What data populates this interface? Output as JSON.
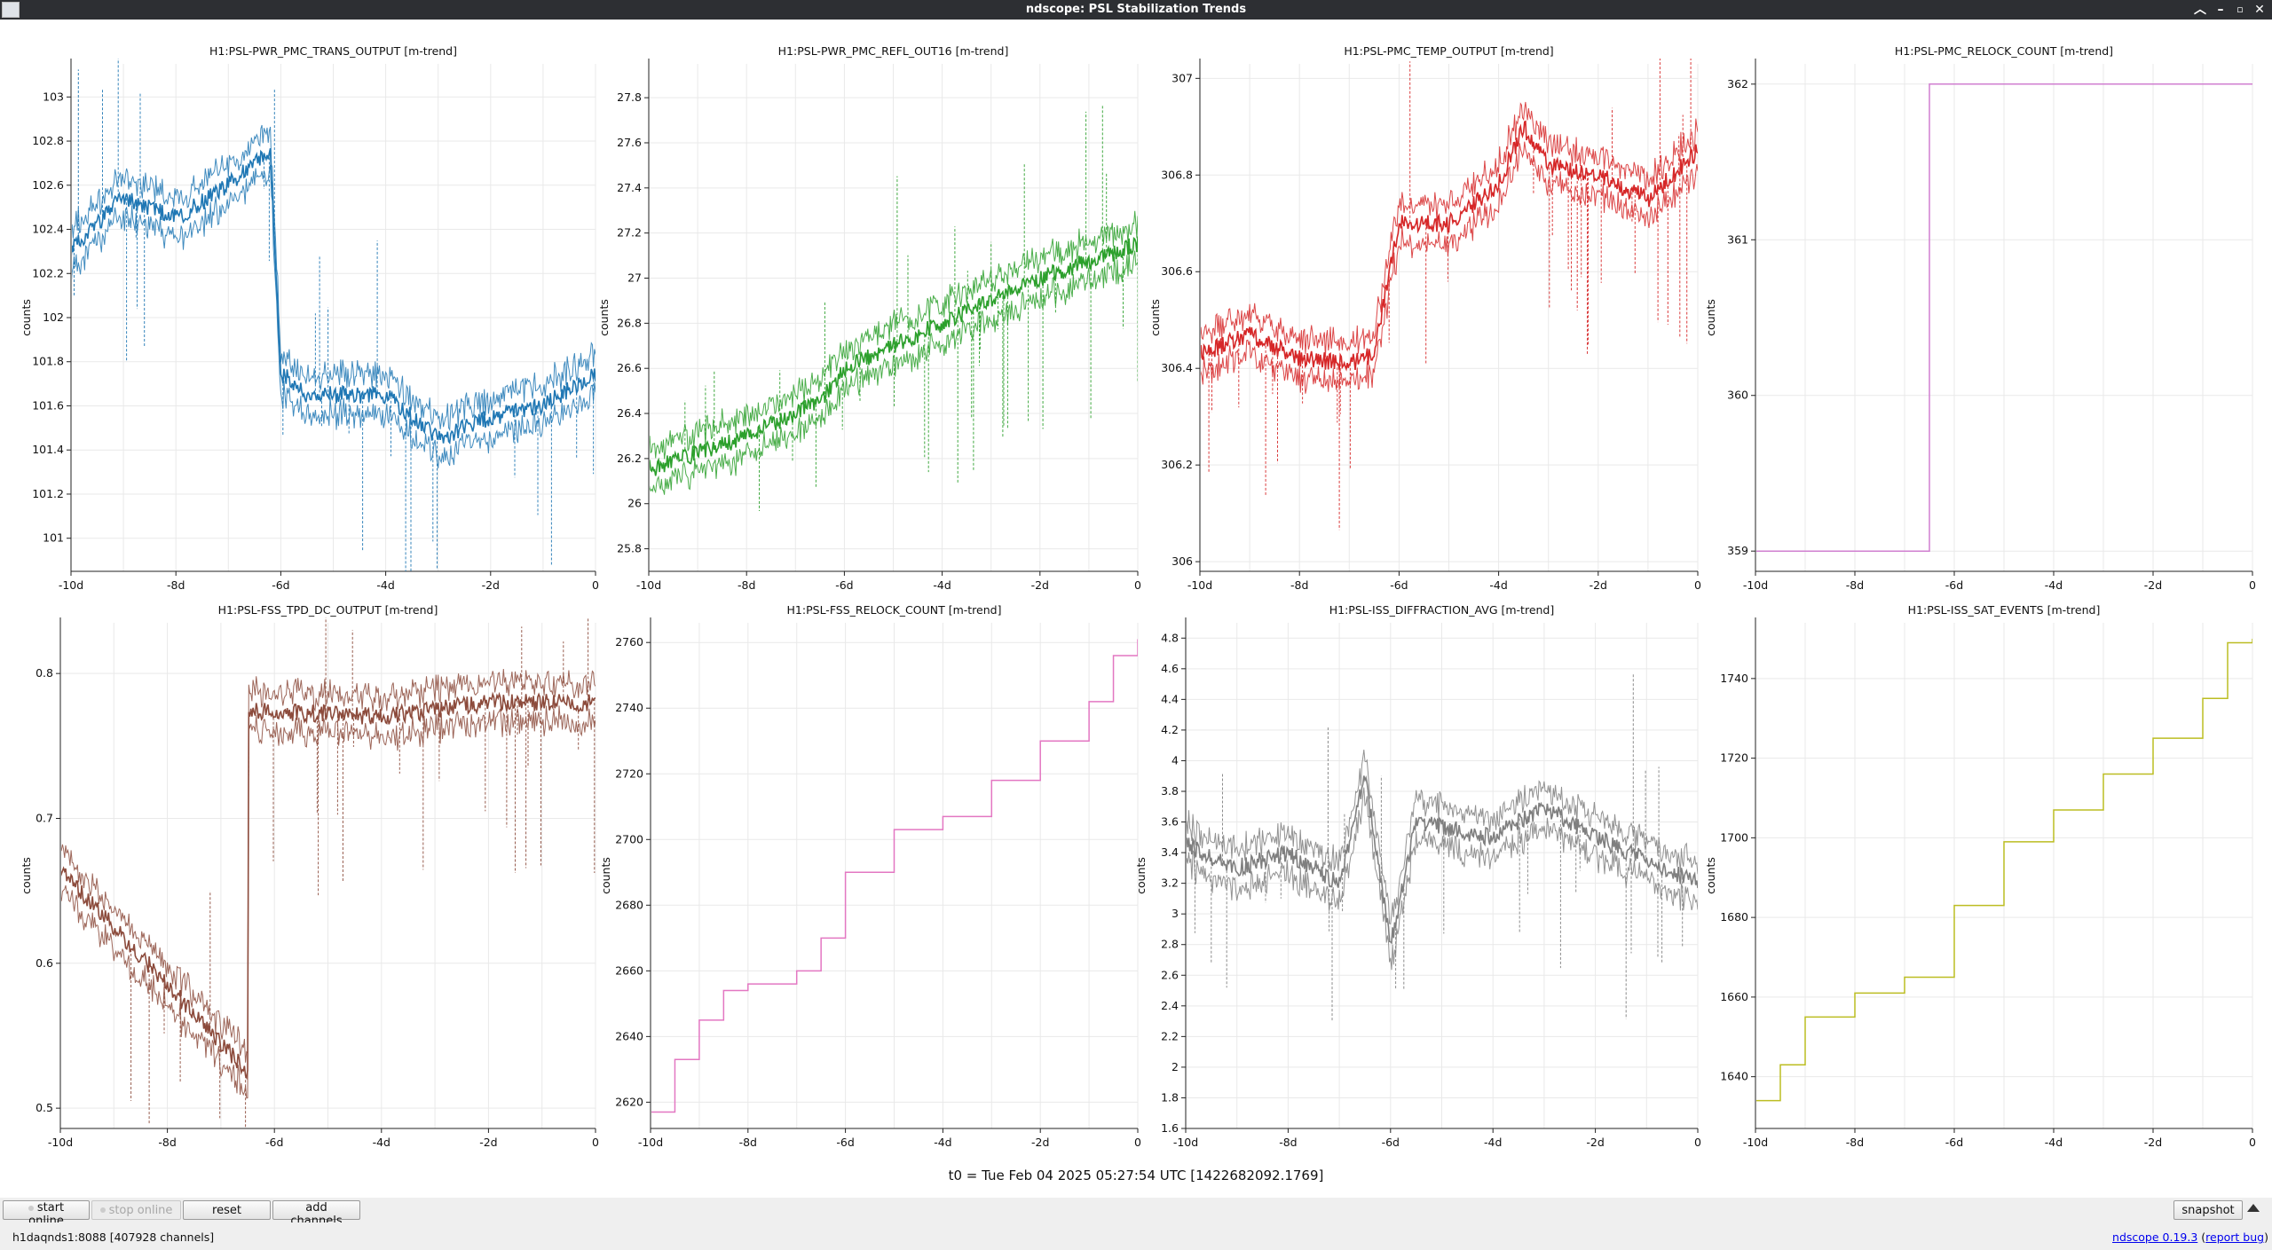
{
  "window": {
    "title": "ndscope: PSL Stabilization Trends"
  },
  "t0_label": "t0 = Tue Feb 04 2025 05:27:54 UTC [1422682092.1769]",
  "ylabel": "counts",
  "xticks": [
    "-10d",
    "-8d",
    "-6d",
    "-4d",
    "-2d",
    "0"
  ],
  "plots": [
    {
      "title": "H1:PSL-PWR_PMC_TRANS_OUTPUT [m-trend]",
      "color": "#1f77b4",
      "ylim": [
        100.85,
        103.15
      ],
      "yticks": [
        "101",
        "101.2",
        "101.4",
        "101.6",
        "101.8",
        "102",
        "102.2",
        "102.4",
        "102.6",
        "102.8",
        "103"
      ],
      "kind": "noise"
    },
    {
      "title": "H1:PSL-PWR_PMC_REFL_OUT16 [m-trend]",
      "color": "#2ca02c",
      "ylim": [
        25.7,
        27.95
      ],
      "yticks": [
        "25.8",
        "26",
        "26.2",
        "26.4",
        "26.6",
        "26.8",
        "27",
        "27.2",
        "27.4",
        "27.6",
        "27.8"
      ],
      "kind": "noise"
    },
    {
      "title": "H1:PSL-PMC_TEMP_OUTPUT [m-trend]",
      "color": "#d62728",
      "ylim": [
        305.98,
        307.03
      ],
      "yticks": [
        "306",
        "306.2",
        "306.4",
        "306.6",
        "306.8",
        "307"
      ],
      "kind": "noise"
    },
    {
      "title": "H1:PSL-PMC_RELOCK_COUNT [m-trend]",
      "color": "#d07fd0",
      "ylim": [
        358.87,
        362.13
      ],
      "yticks": [
        "359",
        "360",
        "361",
        "362"
      ],
      "kind": "step"
    },
    {
      "title": "H1:PSL-FSS_TPD_DC_OUTPUT [m-trend]",
      "color": "#8c4b3c",
      "ylim": [
        0.486,
        0.835
      ],
      "yticks": [
        "0.5",
        "0.6",
        "0.7",
        "0.8"
      ],
      "kind": "noise"
    },
    {
      "title": "H1:PSL-FSS_RELOCK_COUNT [m-trend]",
      "color": "#e377c2",
      "ylim": [
        2612,
        2766
      ],
      "yticks": [
        "2620",
        "2640",
        "2660",
        "2680",
        "2700",
        "2720",
        "2740",
        "2760"
      ],
      "kind": "step"
    },
    {
      "title": "H1:PSL-ISS_DIFFRACTION_AVG [m-trend]",
      "color": "#7f7f7f",
      "ylim": [
        1.6,
        4.9
      ],
      "yticks": [
        "1.6",
        "1.8",
        "2",
        "2.2",
        "2.4",
        "2.6",
        "2.8",
        "3",
        "3.2",
        "3.4",
        "3.6",
        "3.8",
        "4",
        "4.2",
        "4.4",
        "4.6",
        "4.8"
      ],
      "kind": "noise"
    },
    {
      "title": "H1:PSL-ISS_SAT_EVENTS [m-trend]",
      "color": "#bcbd22",
      "ylim": [
        1627,
        1754
      ],
      "yticks": [
        "1640",
        "1660",
        "1680",
        "1700",
        "1720",
        "1740"
      ],
      "kind": "step"
    }
  ],
  "chart_data": [
    {
      "type": "line",
      "title": "H1:PSL-PWR_PMC_TRANS_OUTPUT [m-trend]",
      "ylabel": "counts",
      "xlim": [
        -10,
        0
      ],
      "ylim": [
        100.85,
        103.15
      ],
      "x": [
        -10,
        -9,
        -8,
        -7,
        -6.5,
        -6.2,
        -6,
        -5.5,
        -4,
        -3,
        -2,
        -1,
        0
      ],
      "y": [
        102.3,
        102.55,
        102.45,
        102.6,
        102.7,
        102.75,
        101.75,
        101.65,
        101.65,
        101.45,
        101.55,
        101.6,
        101.75
      ]
    },
    {
      "type": "line",
      "title": "H1:PSL-PWR_PMC_REFL_OUT16 [m-trend]",
      "ylabel": "counts",
      "xlim": [
        -10,
        0
      ],
      "ylim": [
        25.7,
        27.95
      ],
      "x": [
        -10,
        -8,
        -6.5,
        -6,
        -4,
        -2,
        0
      ],
      "y": [
        26.15,
        26.3,
        26.45,
        26.6,
        26.8,
        27.0,
        27.15
      ]
    },
    {
      "type": "line",
      "title": "H1:PSL-PMC_TEMP_OUTPUT [m-trend]",
      "ylabel": "counts",
      "xlim": [
        -10,
        0
      ],
      "ylim": [
        305.98,
        307.03
      ],
      "x": [
        -10,
        -9,
        -8,
        -7,
        -6.5,
        -6,
        -5,
        -4,
        -3.5,
        -3,
        -2,
        -1,
        0
      ],
      "y": [
        306.43,
        306.47,
        306.42,
        306.41,
        306.43,
        306.7,
        306.7,
        306.78,
        306.9,
        306.82,
        306.8,
        306.75,
        306.85
      ]
    },
    {
      "type": "line",
      "title": "H1:PSL-PMC_RELOCK_COUNT [m-trend]",
      "ylabel": "counts",
      "xlim": [
        -10,
        0
      ],
      "ylim": [
        358.87,
        362.13
      ],
      "x": [
        -10,
        -6.5,
        -6.5,
        0
      ],
      "y": [
        359,
        359,
        362,
        362
      ]
    },
    {
      "type": "line",
      "title": "H1:PSL-FSS_TPD_DC_OUTPUT [m-trend]",
      "ylabel": "counts",
      "xlim": [
        -10,
        0
      ],
      "ylim": [
        0.486,
        0.835
      ],
      "x": [
        -10,
        -6.5,
        -6.5,
        -4,
        -2,
        0
      ],
      "y": [
        0.665,
        0.525,
        0.775,
        0.77,
        0.78,
        0.78
      ]
    },
    {
      "type": "line",
      "title": "H1:PSL-FSS_RELOCK_COUNT [m-trend]",
      "ylabel": "counts",
      "xlim": [
        -10,
        0
      ],
      "ylim": [
        2612,
        2766
      ],
      "x": [
        -10,
        -9.5,
        -9,
        -8.5,
        -8,
        -7,
        -6.5,
        -6,
        -5,
        -4,
        -3,
        -2,
        -1,
        -0.5,
        0
      ],
      "y": [
        2617,
        2633,
        2645,
        2654,
        2656,
        2660,
        2670,
        2690,
        2703,
        2707,
        2718,
        2730,
        2742,
        2756,
        2761
      ]
    },
    {
      "type": "line",
      "title": "H1:PSL-ISS_DIFFRACTION_AVG [m-trend]",
      "ylabel": "counts",
      "xlim": [
        -10,
        0
      ],
      "ylim": [
        1.6,
        4.9
      ],
      "x": [
        -10,
        -9,
        -8,
        -7,
        -6.5,
        -6,
        -5.5,
        -4,
        -3,
        -2,
        -1,
        0
      ],
      "y": [
        3.45,
        3.3,
        3.4,
        3.2,
        3.9,
        2.8,
        3.6,
        3.5,
        3.7,
        3.5,
        3.35,
        3.2
      ]
    },
    {
      "type": "line",
      "title": "H1:PSL-ISS_SAT_EVENTS [m-trend]",
      "ylabel": "counts",
      "xlim": [
        -10,
        0
      ],
      "ylim": [
        1627,
        1754
      ],
      "x": [
        -10,
        -9.5,
        -9,
        -8,
        -7,
        -6,
        -5,
        -4,
        -3,
        -2,
        -1,
        -0.5,
        0
      ],
      "y": [
        1634,
        1643,
        1655,
        1661,
        1665,
        1683,
        1699,
        1707,
        1716,
        1725,
        1735,
        1749,
        1750
      ]
    }
  ],
  "toolbar": {
    "start_online": "start online",
    "stop_online": "stop online",
    "reset": "reset",
    "add_channels": "add channels",
    "snapshot": "snapshot"
  },
  "status": {
    "server": "h1daqnds1:8088  [407928 channels]",
    "version_name": "ndscope",
    "version_number": "0.19.3",
    "report_bug": "report bug"
  }
}
